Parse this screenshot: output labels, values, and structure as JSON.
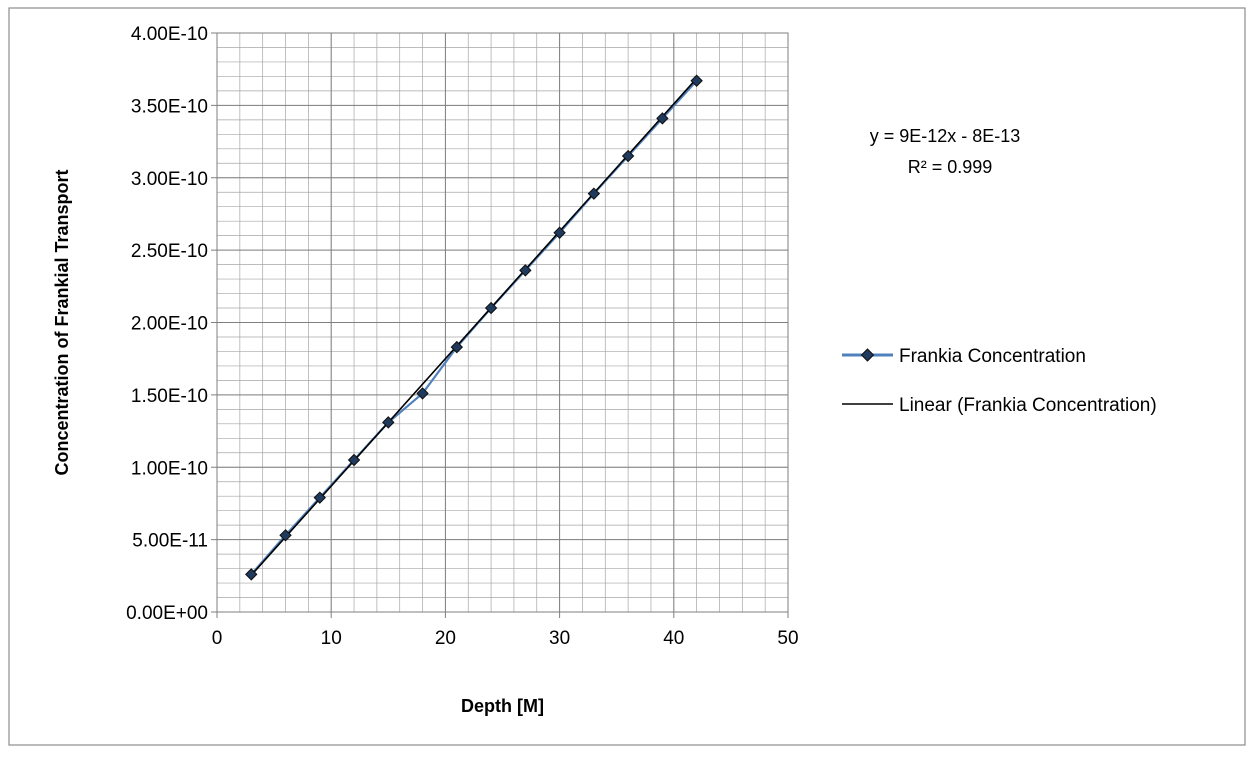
{
  "chart_data": {
    "type": "scatter",
    "title": "",
    "xlabel": "Depth [M]",
    "ylabel": "Concentration of Frankial Transport",
    "xlim": [
      0,
      50
    ],
    "ylim": [
      0,
      4e-10
    ],
    "x_ticks": [
      {
        "value": 0,
        "label": "0"
      },
      {
        "value": 10,
        "label": "10"
      },
      {
        "value": 20,
        "label": "20"
      },
      {
        "value": 30,
        "label": "30"
      },
      {
        "value": 40,
        "label": "40"
      },
      {
        "value": 50,
        "label": "50"
      }
    ],
    "y_ticks": [
      {
        "value": 0,
        "label": "0.00E+00"
      },
      {
        "value": 5e-11,
        "label": "5.00E-11"
      },
      {
        "value": 1e-10,
        "label": "1.00E-10"
      },
      {
        "value": 1.5e-10,
        "label": "1.50E-10"
      },
      {
        "value": 2e-10,
        "label": "2.00E-10"
      },
      {
        "value": 2.5e-10,
        "label": "2.50E-10"
      },
      {
        "value": 3e-10,
        "label": "3.00E-10"
      },
      {
        "value": 3.5e-10,
        "label": "3.50E-10"
      },
      {
        "value": 4e-10,
        "label": "4.00E-10"
      }
    ],
    "grid": true,
    "minor_grid": true,
    "legend_position": "right",
    "series": [
      {
        "name": "Frankia Concentration",
        "color": "#4f81bd",
        "marker_color": "#1f3a5c",
        "marker": "diamond",
        "x": [
          3,
          6,
          9,
          12,
          15,
          18,
          21,
          24,
          27,
          30,
          33,
          36,
          39,
          42
        ],
        "y": [
          2.6e-11,
          5.3e-11,
          7.9e-11,
          1.05e-10,
          1.31e-10,
          1.51e-10,
          1.83e-10,
          2.1e-10,
          2.36e-10,
          2.62e-10,
          2.89e-10,
          3.15e-10,
          3.41e-10,
          3.67e-10
        ]
      }
    ],
    "trendline": {
      "name": "Linear (Frankia Concentration)",
      "color": "#000000",
      "slope": 8.8e-12,
      "intercept": -1e-12,
      "x_range": [
        3,
        42
      ],
      "equation": "y = 9E-12x - 8E-13",
      "r2": "R² = 0.999"
    }
  }
}
